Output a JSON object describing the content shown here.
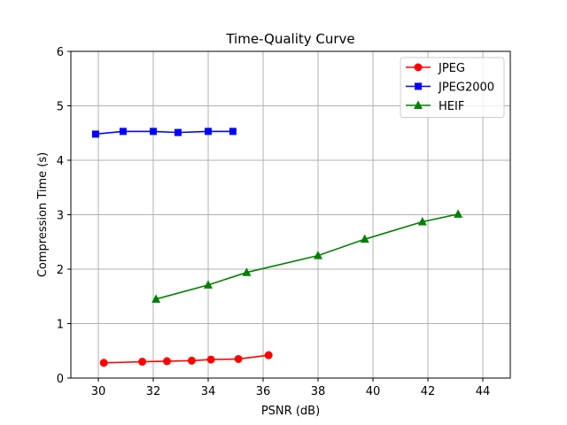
{
  "chart_data": {
    "type": "line",
    "title": "Time-Quality Curve",
    "xlabel": "PSNR (dB)",
    "ylabel": "Compression Time (s)",
    "xlim": [
      29,
      45
    ],
    "ylim": [
      0,
      6
    ],
    "xticks": [
      30,
      32,
      34,
      36,
      38,
      40,
      42,
      44
    ],
    "yticks": [
      0,
      1,
      2,
      3,
      4,
      5,
      6
    ],
    "grid": true,
    "legend_position": "top-right",
    "series": [
      {
        "name": "JPEG",
        "color": "#ff0000",
        "marker": "circle",
        "x": [
          30.2,
          31.6,
          32.5,
          33.4,
          34.1,
          35.1,
          36.2
        ],
        "y": [
          0.28,
          0.3,
          0.31,
          0.32,
          0.34,
          0.35,
          0.42
        ]
      },
      {
        "name": "JPEG2000",
        "color": "#0000ff",
        "marker": "square",
        "x": [
          29.9,
          30.9,
          32.0,
          32.9,
          34.0,
          34.9
        ],
        "y": [
          4.48,
          4.53,
          4.53,
          4.51,
          4.53,
          4.53
        ]
      },
      {
        "name": "HEIF",
        "color": "#008000",
        "marker": "triangle",
        "x": [
          32.1,
          34.0,
          35.4,
          38.0,
          39.7,
          41.8,
          43.1
        ],
        "y": [
          1.45,
          1.71,
          1.94,
          2.25,
          2.55,
          2.87,
          3.01
        ]
      }
    ]
  }
}
